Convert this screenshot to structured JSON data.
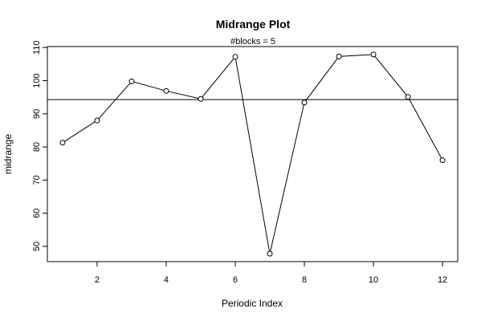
{
  "chart_data": {
    "type": "line",
    "title": "Midrange Plot",
    "subtitle": "#blocks =  5",
    "xlabel": "Periodic Index",
    "ylabel": "midrange",
    "x": [
      1,
      2,
      3,
      4,
      5,
      6,
      7,
      8,
      9,
      10,
      11,
      12
    ],
    "values": [
      81.3,
      88.0,
      99.8,
      96.9,
      94.5,
      107.2,
      47.8,
      93.4,
      107.3,
      107.9,
      95.1,
      76.0
    ],
    "reference_line": 94.3,
    "xlim": [
      0.56,
      12.44
    ],
    "ylim": [
      45.4,
      110.3
    ],
    "x_ticks": [
      2,
      4,
      6,
      8,
      10,
      12
    ],
    "y_ticks": [
      50,
      60,
      70,
      80,
      90,
      100,
      110
    ],
    "markers": "open-circle",
    "grid": false,
    "legend": "none",
    "colors": {
      "line": "#000000",
      "marker_fill": "#ffffff",
      "background": "#ffffff"
    }
  }
}
